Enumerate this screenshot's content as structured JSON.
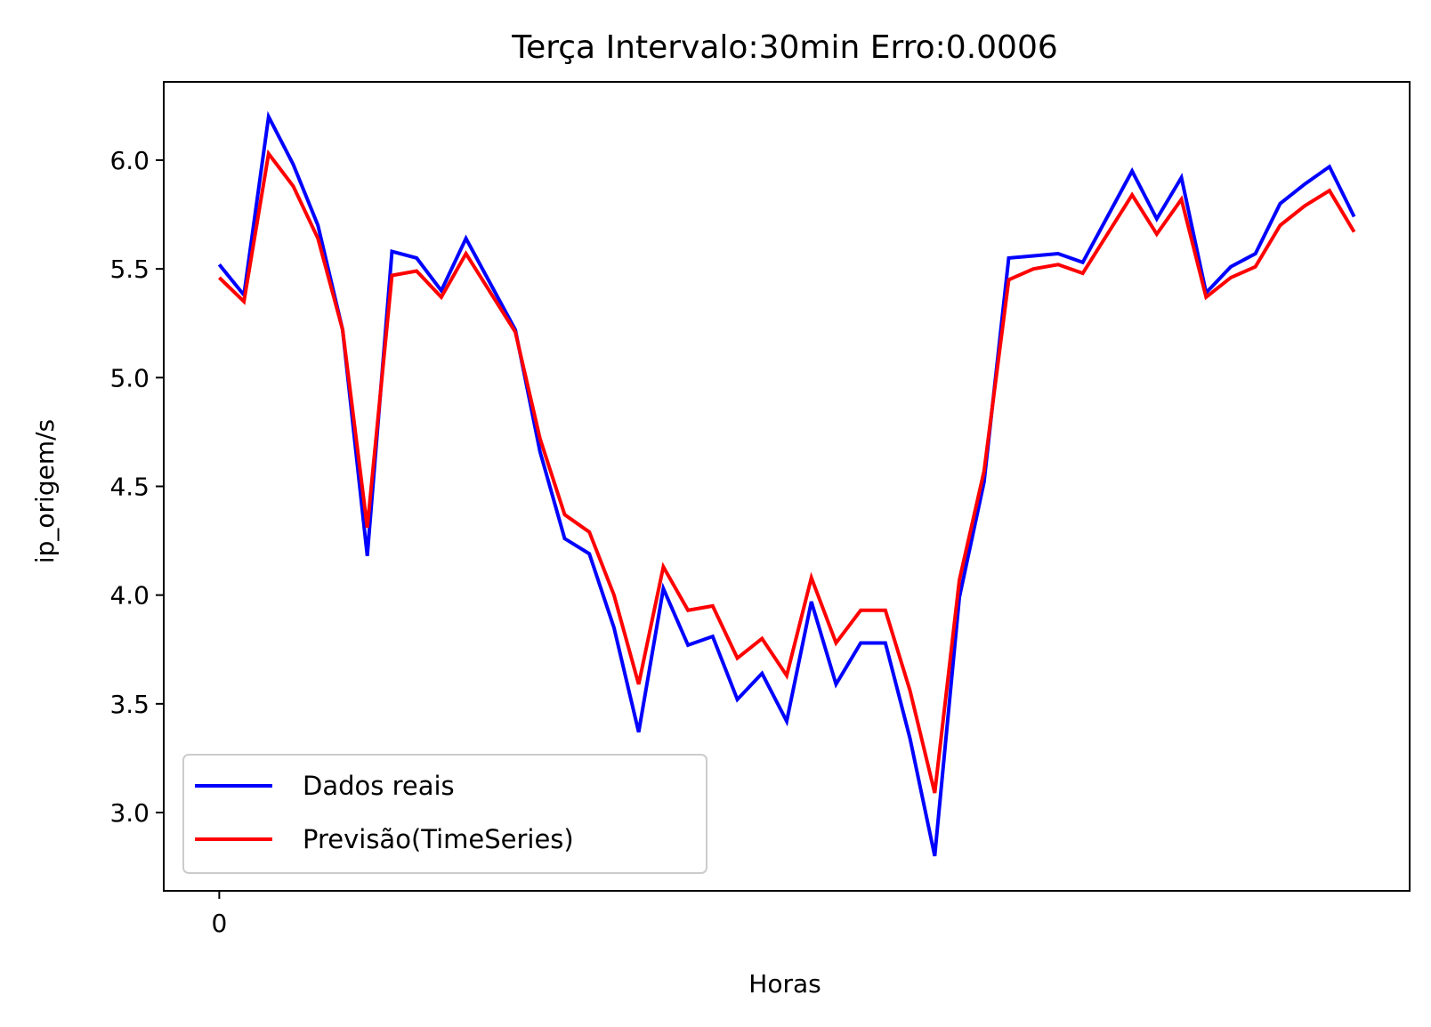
{
  "chart_data": {
    "type": "line",
    "title": "Terça Intervalo:30min Erro:0.0006",
    "xlabel": "Horas",
    "ylabel": "ip_origem/s",
    "x": [
      0,
      1,
      2,
      3,
      4,
      5,
      6,
      7,
      8,
      9,
      10,
      11,
      12,
      13,
      14,
      15,
      16,
      17,
      18,
      19,
      20,
      21,
      22,
      23,
      24,
      25,
      26,
      27,
      28,
      29,
      30,
      31,
      32,
      33,
      34,
      35,
      36,
      37,
      38,
      39,
      40,
      41,
      42,
      43,
      44,
      45,
      46
    ],
    "xlim": [
      -2.25,
      48.25
    ],
    "ylim": [
      2.64,
      6.36
    ],
    "xticks": [
      0
    ],
    "xtick_labels": [
      "0"
    ],
    "yticks": [
      3.0,
      3.5,
      4.0,
      4.5,
      5.0,
      5.5,
      6.0
    ],
    "ytick_labels": [
      "3.0",
      "3.5",
      "4.0",
      "4.5",
      "5.0",
      "5.5",
      "6.0"
    ],
    "grid": false,
    "legend_position": "lower-left",
    "series": [
      {
        "name": "Dados reais",
        "color": "#0000ff",
        "values": [
          5.52,
          5.38,
          6.2,
          5.98,
          5.7,
          5.22,
          4.18,
          5.58,
          5.55,
          5.4,
          5.64,
          5.43,
          5.22,
          4.66,
          4.26,
          4.19,
          3.85,
          3.37,
          4.03,
          3.77,
          3.81,
          3.52,
          3.64,
          3.42,
          3.97,
          3.59,
          3.78,
          3.78,
          3.34,
          2.8,
          3.99,
          4.52,
          5.55,
          5.56,
          5.57,
          5.53,
          5.74,
          5.95,
          5.73,
          5.92,
          5.39,
          5.51,
          5.57,
          5.8,
          5.89,
          5.97,
          5.74
        ]
      },
      {
        "name": "Previsão(TimeSeries)",
        "color": "#ff0000",
        "values": [
          5.46,
          5.35,
          6.03,
          5.88,
          5.64,
          5.22,
          4.31,
          5.47,
          5.49,
          5.37,
          5.57,
          5.39,
          5.21,
          4.72,
          4.37,
          4.29,
          4.0,
          3.59,
          4.13,
          3.93,
          3.95,
          3.71,
          3.8,
          3.63,
          4.08,
          3.78,
          3.93,
          3.93,
          3.56,
          3.09,
          4.07,
          4.57,
          5.45,
          5.5,
          5.52,
          5.48,
          5.66,
          5.84,
          5.66,
          5.82,
          5.37,
          5.46,
          5.51,
          5.7,
          5.79,
          5.86,
          5.67
        ]
      }
    ]
  }
}
